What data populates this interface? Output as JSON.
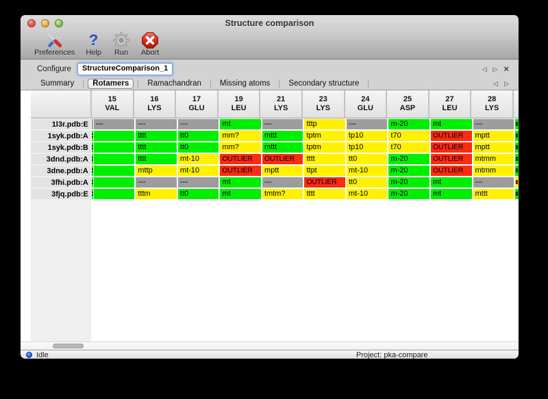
{
  "window": {
    "title": "Structure comparison"
  },
  "toolbar": {
    "items": [
      {
        "label": "Preferences",
        "icon": "tools-icon"
      },
      {
        "label": "Help",
        "icon": "help-icon"
      },
      {
        "label": "Run",
        "icon": "gear-icon"
      },
      {
        "label": "Abort",
        "icon": "abort-icon"
      }
    ]
  },
  "configure": {
    "label": "Configure",
    "value": "StructureComparison_1",
    "nav": {
      "prev": "◁",
      "next": "▷",
      "close": "×"
    }
  },
  "tabs": {
    "selected": "Rotamers",
    "items": [
      "Summary",
      "Rotamers",
      "Ramachandran",
      "Missing atoms",
      "Secondary structure"
    ],
    "nav": {
      "prev": "◁",
      "next": "▷"
    }
  },
  "legend_colors": {
    "ok": "#00ef00",
    "warn": "#fff100",
    "outlier": "#ff2a12",
    "missing": "#9c9c9c"
  },
  "table": {
    "columns": [
      {
        "num": "15",
        "res": "VAL"
      },
      {
        "num": "16",
        "res": "LYS"
      },
      {
        "num": "17",
        "res": "GLU"
      },
      {
        "num": "19",
        "res": "LEU"
      },
      {
        "num": "21",
        "res": "LYS"
      },
      {
        "num": "23",
        "res": "LYS"
      },
      {
        "num": "24",
        "res": "GLU"
      },
      {
        "num": "25",
        "res": "ASP"
      },
      {
        "num": "27",
        "res": "LEU"
      },
      {
        "num": "28",
        "res": "LYS"
      }
    ],
    "rows": [
      {
        "label": "1l3r.pdb:E",
        "left_edge": "missing",
        "right_edge": "ok",
        "cells": [
          {
            "t": "---",
            "s": "missing"
          },
          {
            "t": "---",
            "s": "missing"
          },
          {
            "t": "---",
            "s": "missing"
          },
          {
            "t": "mt",
            "s": "ok"
          },
          {
            "t": "---",
            "s": "missing"
          },
          {
            "t": "tttp",
            "s": "warn"
          },
          {
            "t": "---",
            "s": "missing"
          },
          {
            "t": "m-20",
            "s": "ok"
          },
          {
            "t": "mt",
            "s": "ok"
          },
          {
            "t": "---",
            "s": "missing"
          }
        ]
      },
      {
        "label": "1syk.pdb:A",
        "left_edge": "ok",
        "right_edge": "ok",
        "cells": [
          {
            "t": "",
            "s": "ok"
          },
          {
            "t": "tttt",
            "s": "ok"
          },
          {
            "t": "tt0",
            "s": "ok"
          },
          {
            "t": "mm?",
            "s": "warn"
          },
          {
            "t": "mttt",
            "s": "ok"
          },
          {
            "t": "tptm",
            "s": "warn"
          },
          {
            "t": "tp10",
            "s": "warn"
          },
          {
            "t": "t70",
            "s": "warn"
          },
          {
            "t": "OUTLIER",
            "s": "outlier"
          },
          {
            "t": "mptt",
            "s": "warn"
          }
        ]
      },
      {
        "label": "1syk.pdb:B",
        "left_edge": "ok",
        "right_edge": "ok",
        "cells": [
          {
            "t": "",
            "s": "ok"
          },
          {
            "t": "tttt",
            "s": "ok"
          },
          {
            "t": "tt0",
            "s": "ok"
          },
          {
            "t": "mm?",
            "s": "warn"
          },
          {
            "t": "mttt",
            "s": "ok"
          },
          {
            "t": "tptm",
            "s": "warn"
          },
          {
            "t": "tp10",
            "s": "warn"
          },
          {
            "t": "t70",
            "s": "warn"
          },
          {
            "t": "OUTLIER",
            "s": "outlier"
          },
          {
            "t": "mptt",
            "s": "warn"
          }
        ]
      },
      {
        "label": "3dnd.pdb:A",
        "left_edge": "ok",
        "right_edge": "ok",
        "cells": [
          {
            "t": "",
            "s": "ok"
          },
          {
            "t": "tttt",
            "s": "ok"
          },
          {
            "t": "mt-10",
            "s": "warn"
          },
          {
            "t": "OUTLIER",
            "s": "outlier"
          },
          {
            "t": "OUTLIER",
            "s": "outlier"
          },
          {
            "t": "tttt",
            "s": "warn"
          },
          {
            "t": "tt0",
            "s": "warn"
          },
          {
            "t": "m-20",
            "s": "ok"
          },
          {
            "t": "OUTLIER",
            "s": "outlier"
          },
          {
            "t": "mtmm",
            "s": "warn"
          }
        ]
      },
      {
        "label": "3dne.pdb:A",
        "left_edge": "ok",
        "right_edge": "ok",
        "cells": [
          {
            "t": "",
            "s": "ok"
          },
          {
            "t": "mttp",
            "s": "warn"
          },
          {
            "t": "mt-10",
            "s": "warn"
          },
          {
            "t": "OUTLIER",
            "s": "outlier"
          },
          {
            "t": "mptt",
            "s": "warn"
          },
          {
            "t": "ttpt",
            "s": "warn"
          },
          {
            "t": "mt-10",
            "s": "warn"
          },
          {
            "t": "m-20",
            "s": "ok"
          },
          {
            "t": "OUTLIER",
            "s": "outlier"
          },
          {
            "t": "mtmm",
            "s": "warn"
          }
        ]
      },
      {
        "label": "3fhi.pdb:A",
        "left_edge": "ok",
        "right_edge": "warn",
        "cells": [
          {
            "t": "",
            "s": "ok"
          },
          {
            "t": "---",
            "s": "missing"
          },
          {
            "t": "---",
            "s": "missing"
          },
          {
            "t": "mt",
            "s": "ok"
          },
          {
            "t": "---",
            "s": "missing"
          },
          {
            "t": "OUTLIER",
            "s": "outlier"
          },
          {
            "t": "tt0",
            "s": "warn"
          },
          {
            "t": "m-20",
            "s": "ok"
          },
          {
            "t": "mt",
            "s": "ok"
          },
          {
            "t": "---",
            "s": "missing"
          }
        ]
      },
      {
        "label": "3fjq.pdb:E",
        "left_edge": "ok",
        "right_edge": "ok",
        "cells": [
          {
            "t": "",
            "s": "ok"
          },
          {
            "t": "tttm",
            "s": "warn"
          },
          {
            "t": "tt0",
            "s": "ok"
          },
          {
            "t": "mt",
            "s": "ok"
          },
          {
            "t": "tmtm?",
            "s": "warn"
          },
          {
            "t": "tttt",
            "s": "warn"
          },
          {
            "t": "mt-10",
            "s": "warn"
          },
          {
            "t": "m-20",
            "s": "ok"
          },
          {
            "t": "mt",
            "s": "ok"
          },
          {
            "t": "mttt",
            "s": "warn"
          }
        ]
      }
    ]
  },
  "status_bar": {
    "state": "Idle",
    "project": "Project: pka-compare"
  }
}
